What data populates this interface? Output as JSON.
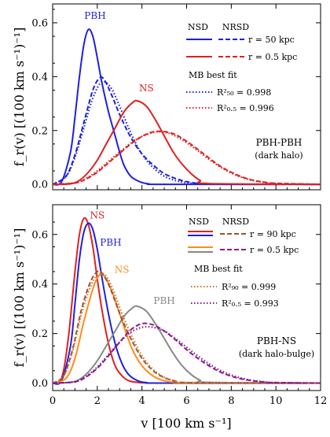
{
  "x_axis_label": "v [100 km s⁻¹]",
  "chart_data": [
    {
      "type": "line",
      "annotation": "PBH-PBH",
      "annotation_sub": "(dark halo)",
      "ylabel": "f_r(v) [(100 km s⁻¹)⁻¹]",
      "xlim": [
        0,
        12
      ],
      "ylim": [
        -0.02,
        0.67
      ],
      "x_ticks": [
        0,
        2,
        4,
        6,
        8,
        10,
        12
      ],
      "y_ticks": [
        0.0,
        0.2,
        0.4,
        0.6
      ],
      "y_tick_labels": [
        "0.0",
        "0.2",
        "0.4",
        "0.6"
      ],
      "legend": {
        "placement": "top-right",
        "header_nsd": "NSD",
        "header_nrsd": "NRSD",
        "rows": [
          {
            "label": "r = 50 kpc",
            "color": "#1f1fe0"
          },
          {
            "label": "r = 0.5 kpc",
            "color": "#e02020"
          }
        ],
        "fit_header": "MB best fit",
        "fit_rows": [
          {
            "label": "R²₅₀ = 0.998",
            "color": "#1f1fe0"
          },
          {
            "label": "R²₀.₅ = 0.996",
            "color": "#e02020"
          }
        ]
      },
      "series": [
        {
          "color": "#1f1fe0",
          "style": "solid",
          "label": "PBH",
          "label_at": [
            1.9,
            0.615
          ],
          "x": [
            0,
            0.4,
            0.8,
            1.0,
            1.2,
            1.4,
            1.6,
            1.8,
            2.0,
            2.2,
            2.5,
            2.8,
            3.0,
            3.2,
            3.5,
            3.9,
            4.3,
            5.0,
            12
          ],
          "y": [
            0,
            0.01,
            0.12,
            0.25,
            0.4,
            0.52,
            0.575,
            0.55,
            0.47,
            0.38,
            0.27,
            0.18,
            0.12,
            0.07,
            0.03,
            0.01,
            0.002,
            0,
            0
          ]
        },
        {
          "color": "#1f1fe0",
          "style": "dashed",
          "x": [
            0,
            0.6,
            1.0,
            1.4,
            1.8,
            2.1,
            2.3,
            2.6,
            3.0,
            3.4,
            3.8,
            4.2,
            4.6,
            5.0,
            5.5,
            6.0,
            6.5,
            7,
            12
          ],
          "y": [
            0,
            0.03,
            0.11,
            0.23,
            0.35,
            0.395,
            0.39,
            0.34,
            0.26,
            0.19,
            0.135,
            0.095,
            0.065,
            0.04,
            0.022,
            0.01,
            0.004,
            0.001,
            0
          ]
        },
        {
          "color": "#1f1fe0",
          "style": "dotted",
          "x": [
            0,
            0.6,
            1.0,
            1.4,
            1.8,
            2.2,
            2.6,
            3.0,
            3.4,
            3.8,
            4.2,
            4.6,
            5.0,
            5.5,
            6.0,
            6.5,
            7,
            12
          ],
          "y": [
            0,
            0.03,
            0.1,
            0.21,
            0.32,
            0.38,
            0.36,
            0.29,
            0.21,
            0.14,
            0.09,
            0.055,
            0.03,
            0.014,
            0.006,
            0.002,
            0.001,
            0
          ]
        },
        {
          "color": "#e02020",
          "style": "solid",
          "label": "NS",
          "label_at": [
            4.2,
            0.345
          ],
          "x": [
            0,
            0.8,
            1.2,
            1.6,
            2.0,
            2.4,
            2.8,
            3.2,
            3.6,
            3.8,
            4.2,
            4.6,
            5.0,
            5.4,
            5.8,
            6.2,
            6.6,
            7.0,
            12
          ],
          "y": [
            0,
            0.002,
            0.015,
            0.045,
            0.09,
            0.15,
            0.21,
            0.27,
            0.305,
            0.31,
            0.29,
            0.24,
            0.18,
            0.12,
            0.075,
            0.04,
            0.015,
            0.003,
            0
          ]
        },
        {
          "color": "#e02020",
          "style": "dashed",
          "x": [
            0,
            1.0,
            1.5,
            2.0,
            2.5,
            3.0,
            3.5,
            4.0,
            4.5,
            5.0,
            5.5,
            6.0,
            6.5,
            7.0,
            7.5,
            8.0,
            8.5,
            9.0,
            9.5,
            10,
            12
          ],
          "y": [
            0,
            0.005,
            0.02,
            0.045,
            0.08,
            0.115,
            0.15,
            0.178,
            0.195,
            0.196,
            0.185,
            0.16,
            0.13,
            0.098,
            0.068,
            0.045,
            0.027,
            0.015,
            0.008,
            0.004,
            0
          ]
        },
        {
          "color": "#e02020",
          "style": "dotted",
          "x": [
            0,
            1.0,
            1.5,
            2.0,
            2.5,
            3.0,
            3.5,
            4.0,
            4.5,
            4.8,
            5.2,
            5.6,
            6.0,
            6.5,
            7.0,
            7.5,
            8.0,
            8.5,
            9.0,
            9.5,
            10,
            12
          ],
          "y": [
            0,
            0.006,
            0.022,
            0.05,
            0.085,
            0.12,
            0.153,
            0.178,
            0.193,
            0.195,
            0.19,
            0.175,
            0.155,
            0.125,
            0.093,
            0.065,
            0.042,
            0.025,
            0.014,
            0.007,
            0.003,
            0
          ]
        }
      ]
    },
    {
      "type": "line",
      "annotation": "PBH-NS",
      "annotation_sub": "(dark halo-bulge)",
      "ylabel": "f_r(v) [(100 km s⁻¹)⁻¹]",
      "xlim": [
        0,
        12
      ],
      "ylim": [
        -0.03,
        0.72
      ],
      "x_ticks": [
        0,
        2,
        4,
        6,
        8,
        10,
        12
      ],
      "x_tick_labels": [
        "0",
        "2",
        "4",
        "6",
        "8",
        "10",
        "12"
      ],
      "y_ticks": [
        0.0,
        0.2,
        0.4,
        0.6
      ],
      "y_tick_labels": [
        "0.0",
        "0.2",
        "0.4",
        "0.6"
      ],
      "legend": {
        "placement": "top-right",
        "header_nsd": "NSD",
        "header_nrsd": "NRSD",
        "rows": [
          {
            "label": "r = 90 kpc",
            "nsd_colors": [
              "#e02020",
              "#1f1fe0"
            ],
            "nrsd_color": "#a0522d"
          },
          {
            "label": "r = 0.5 kpc",
            "nsd_colors": [
              "#ff8c1a",
              "#888888"
            ],
            "nrsd_color": "#8b1a8b"
          }
        ],
        "fit_header": "MB best fit",
        "fit_rows": [
          {
            "label": "R²₉₀ = 0.999",
            "color": "#c87533"
          },
          {
            "label": "R²₀.₅ = 0.993",
            "color": "#8b1a8b"
          }
        ]
      },
      "series": [
        {
          "color": "#e02020",
          "style": "solid",
          "label": "NS",
          "label_at": [
            2.0,
            0.665
          ],
          "x": [
            0,
            0.4,
            0.7,
            1.0,
            1.2,
            1.4,
            1.6,
            1.8,
            2.0,
            2.2,
            2.5,
            2.8,
            3.1,
            3.4,
            3.8,
            4.2,
            5,
            12
          ],
          "y": [
            0,
            0.02,
            0.18,
            0.45,
            0.6,
            0.665,
            0.64,
            0.55,
            0.42,
            0.3,
            0.16,
            0.07,
            0.03,
            0.01,
            0.003,
            0.001,
            0,
            0
          ]
        },
        {
          "color": "#1f1fe0",
          "style": "solid",
          "label": "PBH",
          "label_at": [
            2.6,
            0.555
          ],
          "x": [
            0,
            0.4,
            0.8,
            1.0,
            1.2,
            1.4,
            1.6,
            1.8,
            2.0,
            2.2,
            2.5,
            2.8,
            3.1,
            3.4,
            3.8,
            4.2,
            5,
            12
          ],
          "y": [
            0,
            0.01,
            0.15,
            0.32,
            0.5,
            0.61,
            0.645,
            0.62,
            0.54,
            0.43,
            0.28,
            0.16,
            0.08,
            0.035,
            0.01,
            0.002,
            0,
            0
          ]
        },
        {
          "color": "#ff8c1a",
          "style": "solid",
          "label": "NS",
          "label_at": [
            3.1,
            0.445
          ],
          "x": [
            0,
            0.6,
            1.0,
            1.4,
            1.8,
            2.0,
            2.2,
            2.4,
            2.7,
            3.0,
            3.3,
            3.6,
            4.0,
            4.4,
            4.8,
            5.2,
            5.6,
            6,
            12
          ],
          "y": [
            0,
            0.02,
            0.1,
            0.25,
            0.38,
            0.425,
            0.44,
            0.42,
            0.36,
            0.28,
            0.2,
            0.13,
            0.07,
            0.035,
            0.015,
            0.006,
            0.002,
            0.001,
            0
          ]
        },
        {
          "color": "#888888",
          "style": "solid",
          "label": "PBH",
          "label_at": [
            5.0,
            0.32
          ],
          "x": [
            0,
            0.8,
            1.2,
            1.6,
            2.0,
            2.4,
            2.8,
            3.2,
            3.6,
            3.8,
            4.2,
            4.6,
            5.0,
            5.4,
            5.8,
            6.2,
            6.6,
            7,
            12
          ],
          "y": [
            0,
            0.003,
            0.015,
            0.045,
            0.09,
            0.15,
            0.21,
            0.27,
            0.305,
            0.31,
            0.29,
            0.24,
            0.18,
            0.12,
            0.07,
            0.035,
            0.012,
            0.003,
            0
          ]
        },
        {
          "color": "#a0522d",
          "style": "dashed",
          "x": [
            0,
            0.5,
            0.9,
            1.3,
            1.7,
            2.0,
            2.2,
            2.5,
            2.8,
            3.1,
            3.5,
            4.0,
            4.5,
            5.0,
            5.5,
            6,
            12
          ],
          "y": [
            0,
            0.03,
            0.14,
            0.3,
            0.41,
            0.45,
            0.445,
            0.4,
            0.33,
            0.26,
            0.18,
            0.1,
            0.05,
            0.022,
            0.008,
            0.002,
            0
          ]
        },
        {
          "color": "#c87533",
          "style": "dotted",
          "x": [
            0,
            0.5,
            0.9,
            1.3,
            1.7,
            2.0,
            2.3,
            2.6,
            2.9,
            3.2,
            3.6,
            4.0,
            4.5,
            5.0,
            5.5,
            6,
            12
          ],
          "y": [
            0,
            0.03,
            0.13,
            0.28,
            0.39,
            0.435,
            0.44,
            0.4,
            0.33,
            0.26,
            0.18,
            0.11,
            0.055,
            0.024,
            0.009,
            0.003,
            0
          ]
        },
        {
          "color": "#8b1a8b",
          "style": "dashed",
          "x": [
            0,
            1.0,
            1.5,
            2.0,
            2.5,
            3.0,
            3.5,
            4.0,
            4.5,
            5.0,
            5.5,
            6.0,
            6.5,
            7.0,
            7.5,
            8.0,
            8.5,
            9.0,
            9.5,
            10,
            12
          ],
          "y": [
            0,
            0.005,
            0.025,
            0.06,
            0.11,
            0.165,
            0.215,
            0.24,
            0.235,
            0.21,
            0.175,
            0.135,
            0.1,
            0.07,
            0.045,
            0.028,
            0.016,
            0.009,
            0.004,
            0.002,
            0
          ]
        },
        {
          "color": "#8b1a8b",
          "style": "dotted",
          "x": [
            0,
            1.0,
            1.5,
            2.0,
            2.5,
            3.0,
            3.5,
            4.0,
            4.5,
            5.0,
            5.5,
            6.0,
            6.5,
            7.0,
            7.5,
            8.0,
            8.5,
            9.0,
            9.5,
            10,
            12
          ],
          "y": [
            0,
            0.006,
            0.028,
            0.065,
            0.115,
            0.165,
            0.205,
            0.225,
            0.225,
            0.21,
            0.18,
            0.145,
            0.11,
            0.078,
            0.052,
            0.033,
            0.019,
            0.01,
            0.005,
            0.002,
            0
          ]
        }
      ]
    }
  ]
}
